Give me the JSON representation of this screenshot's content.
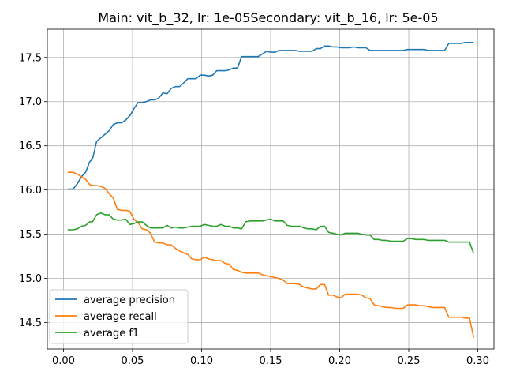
{
  "chart_data": {
    "type": "line",
    "title": "Main: vit_b_32, lr: 1e-05Secondary: vit_b_16, lr: 5e-05",
    "xlabel": "",
    "ylabel": "",
    "xlim": [
      -0.0117,
      0.3117
    ],
    "ylim": [
      14.2,
      17.82
    ],
    "xticks": [
      "0.00",
      "0.05",
      "0.10",
      "0.15",
      "0.20",
      "0.25",
      "0.30"
    ],
    "yticks": [
      "14.5",
      "15.0",
      "15.5",
      "16.0",
      "16.5",
      "17.0",
      "17.5"
    ],
    "grid": true,
    "legend_position": "lower-left",
    "series": [
      {
        "name": "average precision",
        "color": "#1f77b4",
        "points": [
          [
            0.003,
            16.01
          ],
          [
            0.007,
            16.01
          ],
          [
            0.01,
            16.07
          ],
          [
            0.013,
            16.15
          ],
          [
            0.016,
            16.2
          ],
          [
            0.019,
            16.32
          ],
          [
            0.021,
            16.35
          ],
          [
            0.024,
            16.55
          ],
          [
            0.027,
            16.59
          ],
          [
            0.03,
            16.63
          ],
          [
            0.033,
            16.67
          ],
          [
            0.036,
            16.74
          ],
          [
            0.039,
            16.76
          ],
          [
            0.042,
            16.76
          ],
          [
            0.045,
            16.79
          ],
          [
            0.048,
            16.84
          ],
          [
            0.051,
            16.92
          ],
          [
            0.054,
            16.99
          ],
          [
            0.057,
            16.99
          ],
          [
            0.06,
            17.0
          ],
          [
            0.063,
            17.02
          ],
          [
            0.066,
            17.02
          ],
          [
            0.069,
            17.04
          ],
          [
            0.072,
            17.1
          ],
          [
            0.075,
            17.09
          ],
          [
            0.078,
            17.15
          ],
          [
            0.081,
            17.17
          ],
          [
            0.084,
            17.17
          ],
          [
            0.087,
            17.21
          ],
          [
            0.09,
            17.26
          ],
          [
            0.093,
            17.26
          ],
          [
            0.096,
            17.26
          ],
          [
            0.099,
            17.3
          ],
          [
            0.102,
            17.3
          ],
          [
            0.105,
            17.29
          ],
          [
            0.108,
            17.3
          ],
          [
            0.111,
            17.35
          ],
          [
            0.114,
            17.35
          ],
          [
            0.117,
            17.35
          ],
          [
            0.12,
            17.36
          ],
          [
            0.123,
            17.38
          ],
          [
            0.126,
            17.38
          ],
          [
            0.129,
            17.51
          ],
          [
            0.132,
            17.51
          ],
          [
            0.135,
            17.51
          ],
          [
            0.138,
            17.51
          ],
          [
            0.141,
            17.51
          ],
          [
            0.144,
            17.54
          ],
          [
            0.147,
            17.57
          ],
          [
            0.15,
            17.56
          ],
          [
            0.153,
            17.56
          ],
          [
            0.156,
            17.58
          ],
          [
            0.159,
            17.58
          ],
          [
            0.162,
            17.58
          ],
          [
            0.165,
            17.58
          ],
          [
            0.168,
            17.58
          ],
          [
            0.171,
            17.57
          ],
          [
            0.174,
            17.57
          ],
          [
            0.177,
            17.57
          ],
          [
            0.18,
            17.57
          ],
          [
            0.183,
            17.6
          ],
          [
            0.186,
            17.6
          ],
          [
            0.189,
            17.63
          ],
          [
            0.192,
            17.63
          ],
          [
            0.195,
            17.62
          ],
          [
            0.198,
            17.62
          ],
          [
            0.201,
            17.61
          ],
          [
            0.204,
            17.61
          ],
          [
            0.207,
            17.61
          ],
          [
            0.21,
            17.62
          ],
          [
            0.213,
            17.61
          ],
          [
            0.216,
            17.61
          ],
          [
            0.219,
            17.61
          ],
          [
            0.222,
            17.58
          ],
          [
            0.225,
            17.58
          ],
          [
            0.228,
            17.58
          ],
          [
            0.231,
            17.58
          ],
          [
            0.234,
            17.58
          ],
          [
            0.237,
            17.58
          ],
          [
            0.24,
            17.58
          ],
          [
            0.243,
            17.58
          ],
          [
            0.246,
            17.58
          ],
          [
            0.249,
            17.59
          ],
          [
            0.252,
            17.59
          ],
          [
            0.255,
            17.59
          ],
          [
            0.258,
            17.59
          ],
          [
            0.261,
            17.59
          ],
          [
            0.264,
            17.58
          ],
          [
            0.267,
            17.58
          ],
          [
            0.27,
            17.58
          ],
          [
            0.273,
            17.58
          ],
          [
            0.276,
            17.58
          ],
          [
            0.279,
            17.66
          ],
          [
            0.282,
            17.66
          ],
          [
            0.285,
            17.66
          ],
          [
            0.288,
            17.66
          ],
          [
            0.291,
            17.67
          ],
          [
            0.294,
            17.67
          ],
          [
            0.297,
            17.67
          ]
        ]
      },
      {
        "name": "average recall",
        "color": "#ff7f0e",
        "points": [
          [
            0.003,
            16.2
          ],
          [
            0.007,
            16.2
          ],
          [
            0.01,
            16.18
          ],
          [
            0.013,
            16.15
          ],
          [
            0.016,
            16.12
          ],
          [
            0.019,
            16.06
          ],
          [
            0.021,
            16.05
          ],
          [
            0.024,
            16.05
          ],
          [
            0.027,
            16.04
          ],
          [
            0.03,
            16.02
          ],
          [
            0.033,
            15.96
          ],
          [
            0.036,
            15.91
          ],
          [
            0.039,
            15.78
          ],
          [
            0.042,
            15.77
          ],
          [
            0.045,
            15.77
          ],
          [
            0.048,
            15.76
          ],
          [
            0.051,
            15.67
          ],
          [
            0.054,
            15.63
          ],
          [
            0.057,
            15.56
          ],
          [
            0.06,
            15.55
          ],
          [
            0.063,
            15.51
          ],
          [
            0.066,
            15.41
          ],
          [
            0.069,
            15.4
          ],
          [
            0.072,
            15.4
          ],
          [
            0.075,
            15.38
          ],
          [
            0.078,
            15.38
          ],
          [
            0.081,
            15.34
          ],
          [
            0.084,
            15.31
          ],
          [
            0.087,
            15.29
          ],
          [
            0.09,
            15.27
          ],
          [
            0.093,
            15.22
          ],
          [
            0.096,
            15.21
          ],
          [
            0.099,
            15.21
          ],
          [
            0.102,
            15.24
          ],
          [
            0.105,
            15.22
          ],
          [
            0.108,
            15.21
          ],
          [
            0.111,
            15.2
          ],
          [
            0.114,
            15.2
          ],
          [
            0.117,
            15.17
          ],
          [
            0.12,
            15.16
          ],
          [
            0.123,
            15.1
          ],
          [
            0.126,
            15.09
          ],
          [
            0.129,
            15.07
          ],
          [
            0.132,
            15.06
          ],
          [
            0.135,
            15.06
          ],
          [
            0.138,
            15.06
          ],
          [
            0.141,
            15.06
          ],
          [
            0.144,
            15.04
          ],
          [
            0.147,
            15.03
          ],
          [
            0.15,
            15.02
          ],
          [
            0.153,
            15.01
          ],
          [
            0.156,
            15.0
          ],
          [
            0.159,
            14.98
          ],
          [
            0.162,
            14.94
          ],
          [
            0.165,
            14.94
          ],
          [
            0.168,
            14.94
          ],
          [
            0.171,
            14.93
          ],
          [
            0.174,
            14.9
          ],
          [
            0.177,
            14.89
          ],
          [
            0.18,
            14.88
          ],
          [
            0.183,
            14.88
          ],
          [
            0.186,
            14.93
          ],
          [
            0.189,
            14.93
          ],
          [
            0.192,
            14.81
          ],
          [
            0.195,
            14.81
          ],
          [
            0.198,
            14.79
          ],
          [
            0.201,
            14.78
          ],
          [
            0.204,
            14.82
          ],
          [
            0.207,
            14.82
          ],
          [
            0.21,
            14.82
          ],
          [
            0.213,
            14.82
          ],
          [
            0.216,
            14.81
          ],
          [
            0.219,
            14.78
          ],
          [
            0.222,
            14.77
          ],
          [
            0.225,
            14.7
          ],
          [
            0.228,
            14.69
          ],
          [
            0.231,
            14.68
          ],
          [
            0.234,
            14.67
          ],
          [
            0.237,
            14.67
          ],
          [
            0.24,
            14.66
          ],
          [
            0.243,
            14.66
          ],
          [
            0.246,
            14.66
          ],
          [
            0.249,
            14.7
          ],
          [
            0.252,
            14.7
          ],
          [
            0.255,
            14.7
          ],
          [
            0.258,
            14.69
          ],
          [
            0.261,
            14.69
          ],
          [
            0.264,
            14.68
          ],
          [
            0.267,
            14.67
          ],
          [
            0.27,
            14.67
          ],
          [
            0.273,
            14.67
          ],
          [
            0.276,
            14.67
          ],
          [
            0.279,
            14.56
          ],
          [
            0.282,
            14.56
          ],
          [
            0.285,
            14.56
          ],
          [
            0.288,
            14.56
          ],
          [
            0.291,
            14.55
          ],
          [
            0.294,
            14.55
          ],
          [
            0.297,
            14.33
          ]
        ]
      },
      {
        "name": "average f1",
        "color": "#2ca02c",
        "points": [
          [
            0.003,
            15.55
          ],
          [
            0.007,
            15.55
          ],
          [
            0.01,
            15.56
          ],
          [
            0.013,
            15.59
          ],
          [
            0.016,
            15.6
          ],
          [
            0.019,
            15.64
          ],
          [
            0.021,
            15.64
          ],
          [
            0.024,
            15.72
          ],
          [
            0.027,
            15.74
          ],
          [
            0.03,
            15.72
          ],
          [
            0.033,
            15.72
          ],
          [
            0.036,
            15.67
          ],
          [
            0.039,
            15.66
          ],
          [
            0.042,
            15.66
          ],
          [
            0.045,
            15.67
          ],
          [
            0.048,
            15.61
          ],
          [
            0.051,
            15.62
          ],
          [
            0.054,
            15.64
          ],
          [
            0.057,
            15.64
          ],
          [
            0.06,
            15.6
          ],
          [
            0.063,
            15.57
          ],
          [
            0.066,
            15.57
          ],
          [
            0.069,
            15.57
          ],
          [
            0.072,
            15.57
          ],
          [
            0.075,
            15.6
          ],
          [
            0.078,
            15.57
          ],
          [
            0.081,
            15.58
          ],
          [
            0.084,
            15.57
          ],
          [
            0.087,
            15.57
          ],
          [
            0.09,
            15.58
          ],
          [
            0.093,
            15.59
          ],
          [
            0.096,
            15.59
          ],
          [
            0.099,
            15.59
          ],
          [
            0.102,
            15.61
          ],
          [
            0.105,
            15.6
          ],
          [
            0.108,
            15.59
          ],
          [
            0.111,
            15.59
          ],
          [
            0.114,
            15.61
          ],
          [
            0.117,
            15.59
          ],
          [
            0.12,
            15.59
          ],
          [
            0.123,
            15.57
          ],
          [
            0.126,
            15.57
          ],
          [
            0.129,
            15.56
          ],
          [
            0.132,
            15.64
          ],
          [
            0.135,
            15.65
          ],
          [
            0.138,
            15.65
          ],
          [
            0.141,
            15.65
          ],
          [
            0.144,
            15.65
          ],
          [
            0.147,
            15.66
          ],
          [
            0.15,
            15.67
          ],
          [
            0.153,
            15.65
          ],
          [
            0.156,
            15.65
          ],
          [
            0.159,
            15.65
          ],
          [
            0.162,
            15.6
          ],
          [
            0.165,
            15.59
          ],
          [
            0.168,
            15.59
          ],
          [
            0.171,
            15.59
          ],
          [
            0.174,
            15.57
          ],
          [
            0.177,
            15.56
          ],
          [
            0.18,
            15.56
          ],
          [
            0.183,
            15.55
          ],
          [
            0.186,
            15.59
          ],
          [
            0.189,
            15.59
          ],
          [
            0.192,
            15.52
          ],
          [
            0.195,
            15.51
          ],
          [
            0.198,
            15.5
          ],
          [
            0.201,
            15.49
          ],
          [
            0.204,
            15.51
          ],
          [
            0.207,
            15.51
          ],
          [
            0.21,
            15.51
          ],
          [
            0.213,
            15.51
          ],
          [
            0.216,
            15.5
          ],
          [
            0.219,
            15.49
          ],
          [
            0.222,
            15.49
          ],
          [
            0.225,
            15.44
          ],
          [
            0.228,
            15.44
          ],
          [
            0.231,
            15.43
          ],
          [
            0.234,
            15.43
          ],
          [
            0.237,
            15.42
          ],
          [
            0.24,
            15.42
          ],
          [
            0.243,
            15.42
          ],
          [
            0.246,
            15.42
          ],
          [
            0.249,
            15.45
          ],
          [
            0.252,
            15.45
          ],
          [
            0.255,
            15.44
          ],
          [
            0.258,
            15.44
          ],
          [
            0.261,
            15.44
          ],
          [
            0.264,
            15.43
          ],
          [
            0.267,
            15.43
          ],
          [
            0.27,
            15.43
          ],
          [
            0.273,
            15.43
          ],
          [
            0.276,
            15.43
          ],
          [
            0.279,
            15.41
          ],
          [
            0.282,
            15.41
          ],
          [
            0.285,
            15.41
          ],
          [
            0.288,
            15.41
          ],
          [
            0.291,
            15.41
          ],
          [
            0.294,
            15.41
          ],
          [
            0.297,
            15.28
          ]
        ]
      }
    ]
  }
}
